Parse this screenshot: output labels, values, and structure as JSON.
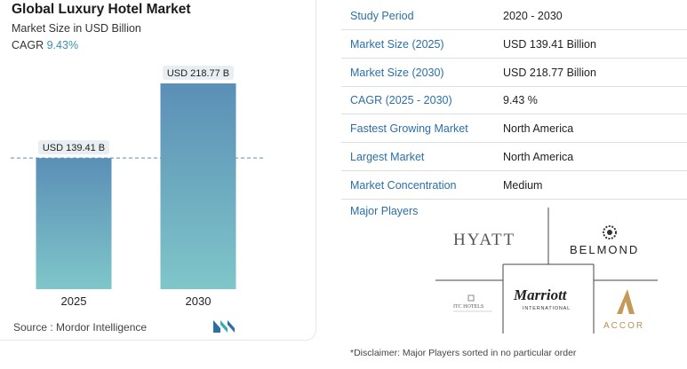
{
  "title": "Global Luxury Hotel Market",
  "subtitle": "Market Size in USD Billion",
  "cagr_label": "CAGR",
  "cagr_value": "9.43%",
  "source": "Source : Mordor Intelligence",
  "chart_data": {
    "type": "bar",
    "categories": [
      "2025",
      "2030"
    ],
    "values": [
      139.41,
      218.77
    ],
    "value_labels": [
      "USD 139.41 B",
      "USD 218.77 B"
    ],
    "ylim": [
      0,
      232
    ],
    "grid": false,
    "reference_line": 139.41
  },
  "table": [
    {
      "key": "Study Period",
      "value": "2020 - 2030"
    },
    {
      "key": "Market Size (2025)",
      "value": "USD 139.41 Billion"
    },
    {
      "key": "Market Size (2030)",
      "value": "USD 218.77 Billion"
    },
    {
      "key": "CAGR (2025 - 2030)",
      "value": "9.43 %"
    },
    {
      "key": "Fastest Growing Market",
      "value": "North America"
    },
    {
      "key": "Largest Market",
      "value": "North America"
    },
    {
      "key": "Market Concentration",
      "value": "Medium"
    }
  ],
  "players_label": "Major Players",
  "players": [
    "HYATT",
    "BELMOND",
    "ITC HOTELS",
    "Marriott",
    "INTERNATIONAL",
    "ACCOR"
  ],
  "disclaimer": "*Disclaimer: Major Players sorted in no particular order"
}
